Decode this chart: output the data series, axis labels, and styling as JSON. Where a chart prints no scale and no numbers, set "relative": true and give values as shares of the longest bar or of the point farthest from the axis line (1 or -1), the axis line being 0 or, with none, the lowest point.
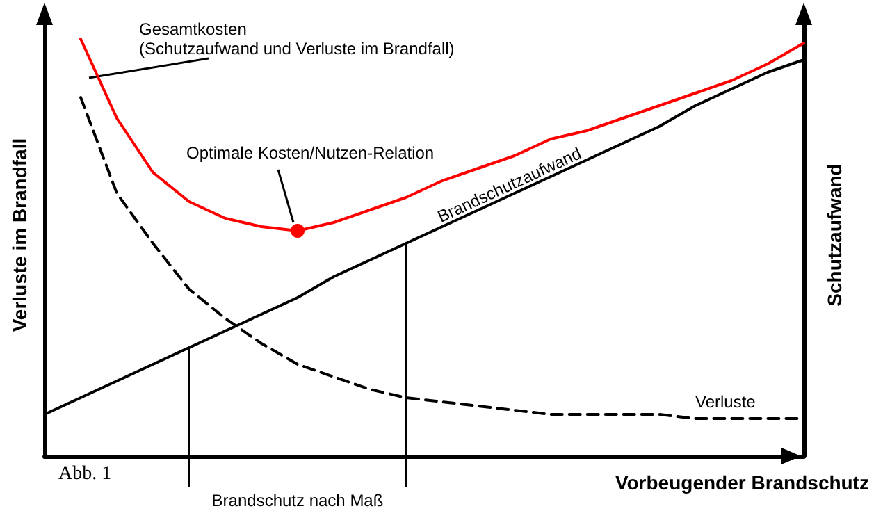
{
  "chart_data": {
    "type": "line",
    "relative": true,
    "legend": false,
    "grid": false,
    "xlabel": "Vorbeugender Brandschutz",
    "ylabel": "Verluste im Brandfall",
    "y2label": "Schutzaufwand",
    "categories": [
      null,
      null,
      null,
      null,
      null,
      null,
      null,
      null,
      null,
      null,
      null,
      null,
      null,
      null,
      null,
      null,
      null,
      null,
      null,
      null,
      null,
      null
    ],
    "series": [
      {
        "name": "Gesamtkosten (Schutzaufwand und Verluste im Brandfall)",
        "color": "#ff0000",
        "line_style": "solid",
        "marker": "none",
        "values": [
          null,
          1,
          0.81,
          0.68,
          0.61,
          0.57,
          0.55,
          0.54,
          0.56,
          0.59,
          0.62,
          0.66,
          0.69,
          0.72,
          0.76,
          0.78,
          0.81,
          0.84,
          0.87,
          0.9,
          0.94,
          0.99
        ]
      },
      {
        "name": "Brandschutzaufwand",
        "color": "#000000",
        "line_style": "solid",
        "marker": "none",
        "values": [
          0.1,
          0.14,
          0.18,
          0.22,
          0.26,
          0.3,
          0.34,
          0.38,
          0.43,
          0.47,
          0.51,
          0.55,
          0.59,
          0.63,
          0.67,
          0.71,
          0.75,
          0.79,
          0.84,
          0.88,
          0.92,
          0.95
        ]
      },
      {
        "name": "Verluste",
        "color": "#000000",
        "line_style": "dashed",
        "marker": "none",
        "values": [
          null,
          0.86,
          0.63,
          0.51,
          0.4,
          0.33,
          0.27,
          0.22,
          0.19,
          0.16,
          0.14,
          0.13,
          0.12,
          0.11,
          0.1,
          0.1,
          0.1,
          0.1,
          0.09,
          0.09,
          0.09,
          0.09
        ]
      }
    ],
    "annotations": [
      "Optimale Kosten/Nutzen-Relation",
      "Brandschutz nach Maß",
      "Abb. 1"
    ]
  }
}
